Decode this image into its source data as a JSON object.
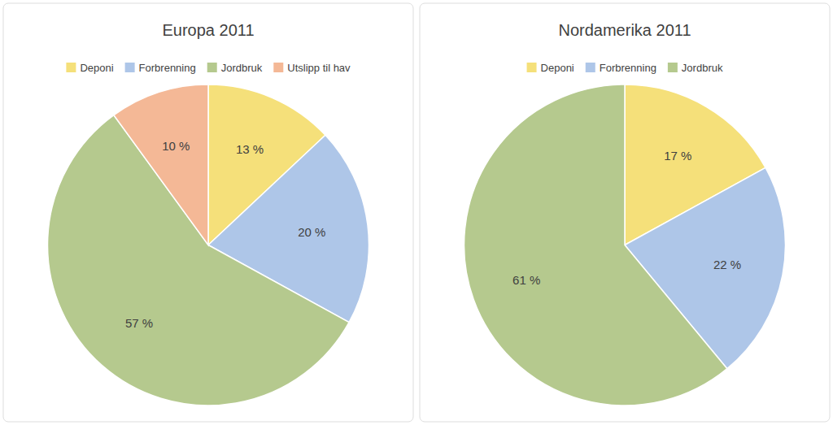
{
  "chart_data": [
    {
      "type": "pie",
      "title": "Europa 2011",
      "categories": [
        "Deponi",
        "Forbrenning",
        "Jordbruk",
        "Utslipp til hav"
      ],
      "values": [
        13,
        20,
        57,
        10
      ],
      "value_labels": [
        "13 %",
        "20 %",
        "57 %",
        "10 %"
      ],
      "colors": [
        "#f5e07a",
        "#aec6e8",
        "#b5c98e",
        "#f4b896"
      ],
      "data_labels": true,
      "legend": "top"
    },
    {
      "type": "pie",
      "title": "Nordamerika 2011",
      "categories": [
        "Deponi",
        "Forbrenning",
        "Jordbruk"
      ],
      "values": [
        17,
        22,
        61
      ],
      "value_labels": [
        "17 %",
        "22 %",
        "61 %"
      ],
      "colors": [
        "#f5e07a",
        "#aec6e8",
        "#b5c98e"
      ],
      "data_labels": true,
      "legend": "top"
    }
  ]
}
